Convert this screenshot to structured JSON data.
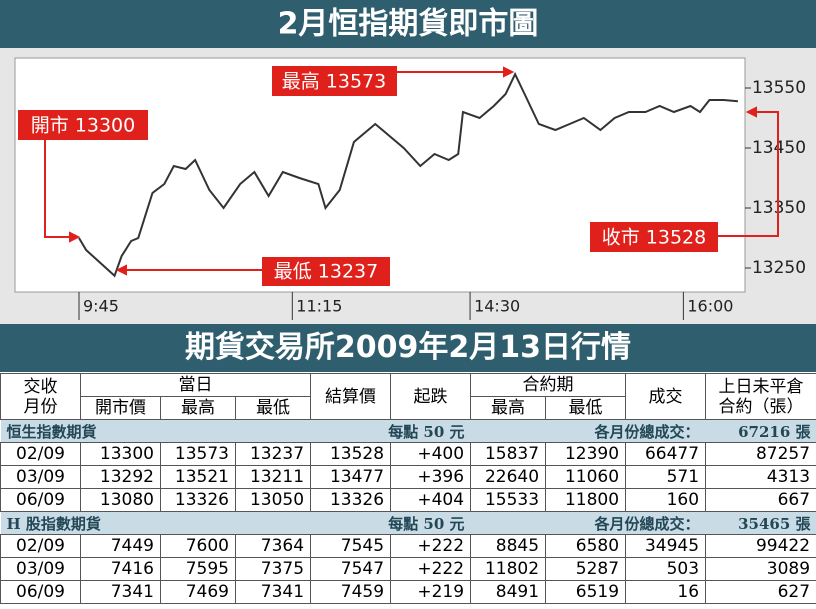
{
  "chart_data": {
    "type": "line",
    "title": "2月恒指期貨即市圖",
    "x": [
      0,
      3,
      8,
      15,
      18,
      22,
      25,
      31,
      36,
      40,
      45,
      49,
      55,
      61,
      68,
      74,
      80,
      86,
      93,
      101,
      104,
      110,
      116,
      125,
      131,
      137,
      144,
      150,
      156,
      160,
      162,
      169,
      175,
      180,
      184,
      188,
      194,
      201,
      207,
      213,
      220,
      226,
      232,
      239,
      245,
      251,
      258,
      262,
      266,
      272,
      278
    ],
    "series": [
      {
        "color": "#333333",
        "values": [
          13300,
          13280,
          13262,
          13237,
          13270,
          13295,
          13300,
          13375,
          13390,
          13420,
          13415,
          13430,
          13380,
          13350,
          13390,
          13410,
          13370,
          13410,
          13400,
          13390,
          13350,
          13380,
          13460,
          13490,
          13470,
          13450,
          13420,
          13440,
          13430,
          13440,
          13510,
          13500,
          13520,
          13540,
          13573,
          13540,
          13490,
          13480,
          13490,
          13500,
          13480,
          13500,
          13510,
          13510,
          13520,
          13510,
          13520,
          13510,
          13530,
          13530,
          13528
        ]
      }
    ],
    "xlim": [
      -27,
      281
    ],
    "xticks": [
      {
        "value": 0,
        "label": "9:45"
      },
      {
        "value": 90,
        "label": "11:15"
      },
      {
        "value": 165,
        "label": "14:30"
      },
      {
        "value": 255,
        "label": "16:00"
      }
    ],
    "ylim": [
      13210,
      13600
    ],
    "yticks": [
      13250,
      13350,
      13450,
      13550
    ],
    "annotations": [
      "開市 13300",
      "最高 13573",
      "最低 13237",
      "收市 13528"
    ]
  },
  "table": {
    "title": "期貨交易所2009年2月13日行情",
    "header": [
      "交收\n月份",
      "當日",
      "結算價",
      "起跌",
      "合約期",
      "成交",
      "上日未平倉\n合約（張）"
    ],
    "subheader": [
      "開市價",
      "最高",
      "最低",
      "最高",
      "最低"
    ],
    "sections": [
      {
        "name": "恒生指數期貨",
        "unit": "每點 50 元",
        "total_label": "各月份總成交：",
        "total": "67216 張",
        "rows": [
          [
            "02/09",
            "13300",
            "13573",
            "13237",
            "13528",
            "+400",
            "15837",
            "12390",
            "66477",
            "87257"
          ],
          [
            "03/09",
            "13292",
            "13521",
            "13211",
            "13477",
            "+396",
            "22640",
            "11060",
            "571",
            "4313"
          ],
          [
            "06/09",
            "13080",
            "13326",
            "13050",
            "13326",
            "+404",
            "15533",
            "11800",
            "160",
            "667"
          ]
        ]
      },
      {
        "name": "H 股指數期貨",
        "unit": "每點 50 元",
        "total_label": "各月份總成交：",
        "total": "35465 張",
        "rows": [
          [
            "02/09",
            "7449",
            "7600",
            "7364",
            "7545",
            "+222",
            "8845",
            "6580",
            "34945",
            "99422"
          ],
          [
            "03/09",
            "7416",
            "7595",
            "7375",
            "7547",
            "+222",
            "11802",
            "5287",
            "503",
            "3089"
          ],
          [
            "06/09",
            "7341",
            "7469",
            "7341",
            "7459",
            "+219",
            "8491",
            "6519",
            "16",
            "627"
          ]
        ]
      }
    ]
  }
}
